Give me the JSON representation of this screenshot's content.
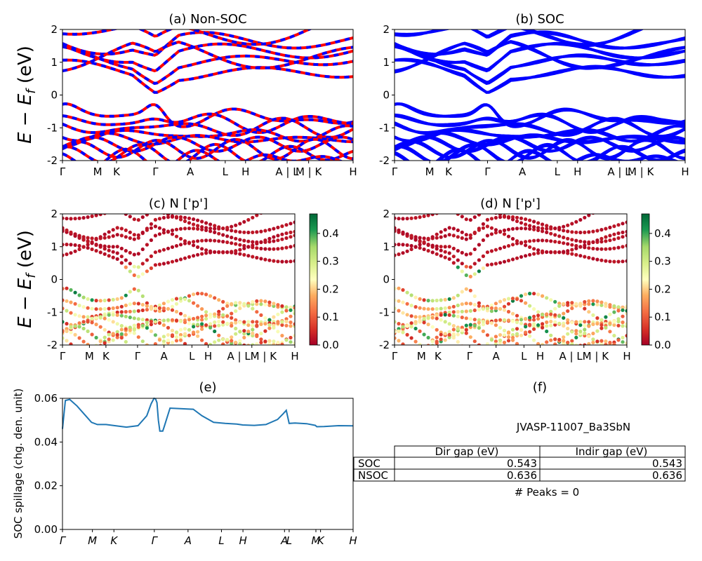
{
  "chart_data": [
    {
      "id": "a",
      "type": "line",
      "title": "(a) Non-SOC",
      "ylabel_prefix": "E − E",
      "ylabel_sub": "f",
      "ylabel_unit": " (eV)",
      "ylim": [
        -2,
        2
      ],
      "yticks": [
        "-2",
        "-1",
        "0",
        "1",
        "2"
      ],
      "kpoints": [
        "Γ",
        "M",
        "K",
        "Γ",
        "A",
        "L",
        "H",
        "A | L",
        "M | K",
        "H"
      ],
      "kpos": [
        0,
        0.121,
        0.186,
        0.32,
        0.44,
        0.56,
        0.63,
        0.773,
        0.847,
        1.0
      ],
      "series": [
        {
          "color": "#ff0000",
          "style": "solid"
        },
        {
          "color": "#0000ff",
          "style": "dashed"
        }
      ]
    },
    {
      "id": "b",
      "type": "line",
      "title": "(b) SOC",
      "ylim": [
        -2,
        2
      ],
      "yticks": [
        "-2",
        "-1",
        "0",
        "1",
        "2"
      ],
      "kpoints": [
        "Γ",
        "M",
        "K",
        "Γ",
        "A",
        "L",
        "H",
        "A | L",
        "M | K",
        "H"
      ],
      "kpos": [
        0,
        0.121,
        0.186,
        0.32,
        0.44,
        0.56,
        0.63,
        0.773,
        0.847,
        1.0
      ],
      "series": [
        {
          "color": "#0000ff",
          "style": "solid"
        }
      ]
    },
    {
      "id": "c",
      "type": "scatter",
      "title": "(c)  N ['p']",
      "ylabel_prefix": "E − E",
      "ylabel_sub": "f",
      "ylabel_unit": " (eV)",
      "ylim": [
        -2,
        2
      ],
      "yticks": [
        "-2",
        "-1",
        "0",
        "1",
        "2"
      ],
      "kpoints": [
        "Γ",
        "M",
        "K",
        "Γ",
        "A",
        "L",
        "H",
        "A | LM | K",
        "H"
      ],
      "kpos": [
        0,
        0.116,
        0.187,
        0.323,
        0.437,
        0.557,
        0.627,
        0.815,
        1.0
      ],
      "colorbar": {
        "min": 0.0,
        "max": 0.47,
        "ticks": [
          "0.0",
          "0.1",
          "0.2",
          "0.3",
          "0.4"
        ],
        "colormap": "RdYlGn"
      }
    },
    {
      "id": "d",
      "type": "scatter",
      "title": "(d) N ['p']",
      "ylim": [
        -2,
        2
      ],
      "yticks": [
        "-2",
        "-1",
        "0",
        "1",
        "2"
      ],
      "kpoints": [
        "Γ",
        "M",
        "K",
        "Γ",
        "A",
        "L",
        "H",
        "A | LM | K",
        "H"
      ],
      "kpos": [
        0,
        0.116,
        0.187,
        0.323,
        0.437,
        0.557,
        0.627,
        0.815,
        1.0
      ],
      "colorbar": {
        "min": 0.0,
        "max": 0.47,
        "ticks": [
          "0.0",
          "0.1",
          "0.2",
          "0.3",
          "0.4"
        ],
        "colormap": "RdYlGn"
      }
    },
    {
      "id": "e",
      "type": "line",
      "title": "(e)",
      "ylabel": "SOC spillage (chg. den. unit)",
      "ylim": [
        0,
        0.06
      ],
      "yticks": [
        "0.00",
        "0.02",
        "0.04",
        "0.06"
      ],
      "kpoints": [
        "Γ",
        "M",
        "K",
        "Γ",
        "A",
        "L",
        "H",
        "A",
        "L",
        "M",
        "K",
        "H"
      ],
      "kpos": [
        0,
        0.103,
        0.177,
        0.316,
        0.432,
        0.547,
        0.621,
        0.764,
        0.78,
        0.872,
        0.888,
        1.0
      ],
      "x": [
        0,
        0.01,
        0.025,
        0.05,
        0.08,
        0.1,
        0.12,
        0.15,
        0.18,
        0.22,
        0.26,
        0.29,
        0.305,
        0.315,
        0.32,
        0.325,
        0.33,
        0.335,
        0.345,
        0.35,
        0.37,
        0.4,
        0.43,
        0.45,
        0.48,
        0.52,
        0.56,
        0.6,
        0.62,
        0.66,
        0.7,
        0.74,
        0.76,
        0.77,
        0.78,
        0.8,
        0.84,
        0.87,
        0.875,
        0.9,
        0.95,
        1.0
      ],
      "y": [
        0.046,
        0.059,
        0.0595,
        0.0565,
        0.052,
        0.049,
        0.048,
        0.048,
        0.0475,
        0.0468,
        0.0475,
        0.052,
        0.0575,
        0.06,
        0.0598,
        0.058,
        0.05,
        0.045,
        0.045,
        0.047,
        0.0555,
        0.0553,
        0.0551,
        0.055,
        0.052,
        0.049,
        0.0485,
        0.0482,
        0.0478,
        0.0476,
        0.048,
        0.0503,
        0.053,
        0.0545,
        0.0485,
        0.0487,
        0.0484,
        0.0476,
        0.047,
        0.0471,
        0.0475,
        0.0474
      ],
      "series": [
        {
          "color": "#1f77b4"
        }
      ]
    }
  ],
  "panel_f": {
    "title": "(f)",
    "label": "JVASP-11007_Ba3SbN",
    "table": {
      "columns": [
        "Dir gap (eV)",
        "Indir gap (eV)"
      ],
      "rows": [
        {
          "name": "SOC",
          "values": [
            "0.543",
            "0.543"
          ]
        },
        {
          "name": "NSOC",
          "values": [
            "0.636",
            "0.636"
          ]
        }
      ]
    },
    "peaks": "# Peaks = 0"
  }
}
